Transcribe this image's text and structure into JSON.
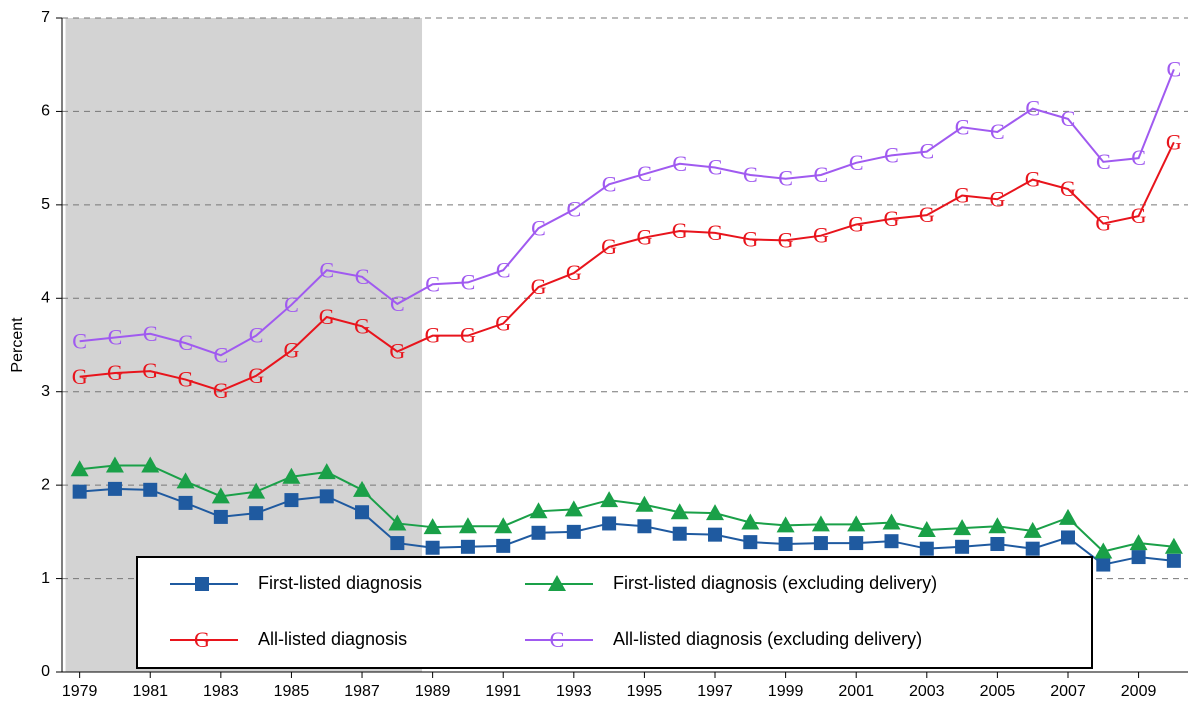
{
  "chart_data": {
    "type": "line",
    "y_label": "Percent",
    "x": [
      1979,
      1980,
      1981,
      1982,
      1983,
      1984,
      1985,
      1986,
      1987,
      1988,
      1989,
      1990,
      1991,
      1992,
      1993,
      1994,
      1995,
      1996,
      1997,
      1998,
      1999,
      2000,
      2001,
      2002,
      2003,
      2004,
      2005,
      2006,
      2007,
      2008,
      2009,
      2010
    ],
    "xlim": [
      1978.5,
      2010.4
    ],
    "xticks": [
      1979,
      1981,
      1983,
      1985,
      1987,
      1989,
      1991,
      1993,
      1995,
      1997,
      1999,
      2001,
      2003,
      2005,
      2007,
      2009
    ],
    "ylim": [
      0,
      7
    ],
    "yticks": [
      0,
      1,
      2,
      3,
      4,
      5,
      6,
      7
    ],
    "grid": true,
    "shaded_range": [
      1978.6,
      1988.7
    ],
    "shade_color": "#d3d3d3",
    "series": [
      {
        "name": "First-listed diagnosis",
        "color": "#1f5aa0",
        "marker": "square",
        "values": [
          1.93,
          1.96,
          1.95,
          1.81,
          1.66,
          1.7,
          1.84,
          1.88,
          1.71,
          1.38,
          1.33,
          1.34,
          1.35,
          1.49,
          1.5,
          1.59,
          1.56,
          1.48,
          1.47,
          1.39,
          1.37,
          1.38,
          1.38,
          1.4,
          1.32,
          1.34,
          1.37,
          1.32,
          1.44,
          1.15,
          1.23,
          1.19
        ]
      },
      {
        "name": "First-listed diagnosis (excluding delivery)",
        "color": "#1aa048",
        "marker": "triangle",
        "values": [
          2.17,
          2.21,
          2.21,
          2.04,
          1.88,
          1.93,
          2.09,
          2.14,
          1.95,
          1.59,
          1.55,
          1.56,
          1.56,
          1.72,
          1.74,
          1.84,
          1.79,
          1.71,
          1.7,
          1.6,
          1.57,
          1.58,
          1.58,
          1.6,
          1.52,
          1.54,
          1.56,
          1.51,
          1.65,
          1.29,
          1.38,
          1.34
        ]
      },
      {
        "name": "All-listed diagnosis",
        "color": "#e8141c",
        "marker": "G",
        "values": [
          3.16,
          3.2,
          3.22,
          3.13,
          3.01,
          3.17,
          3.44,
          3.8,
          3.7,
          3.43,
          3.6,
          3.6,
          3.73,
          4.12,
          4.27,
          4.55,
          4.65,
          4.72,
          4.7,
          4.63,
          4.62,
          4.67,
          4.79,
          4.85,
          4.89,
          5.1,
          5.06,
          5.27,
          5.17,
          4.8,
          4.88,
          5.67
        ]
      },
      {
        "name": "All-listed diagnosis (excluding delivery)",
        "color": "#a05af0",
        "marker": "C",
        "values": [
          3.54,
          3.58,
          3.62,
          3.52,
          3.39,
          3.6,
          3.93,
          4.3,
          4.23,
          3.94,
          4.15,
          4.17,
          4.3,
          4.75,
          4.95,
          5.22,
          5.33,
          5.44,
          5.4,
          5.32,
          5.28,
          5.32,
          5.45,
          5.53,
          5.57,
          5.83,
          5.78,
          6.03,
          5.92,
          5.46,
          5.5,
          6.45
        ]
      }
    ]
  }
}
